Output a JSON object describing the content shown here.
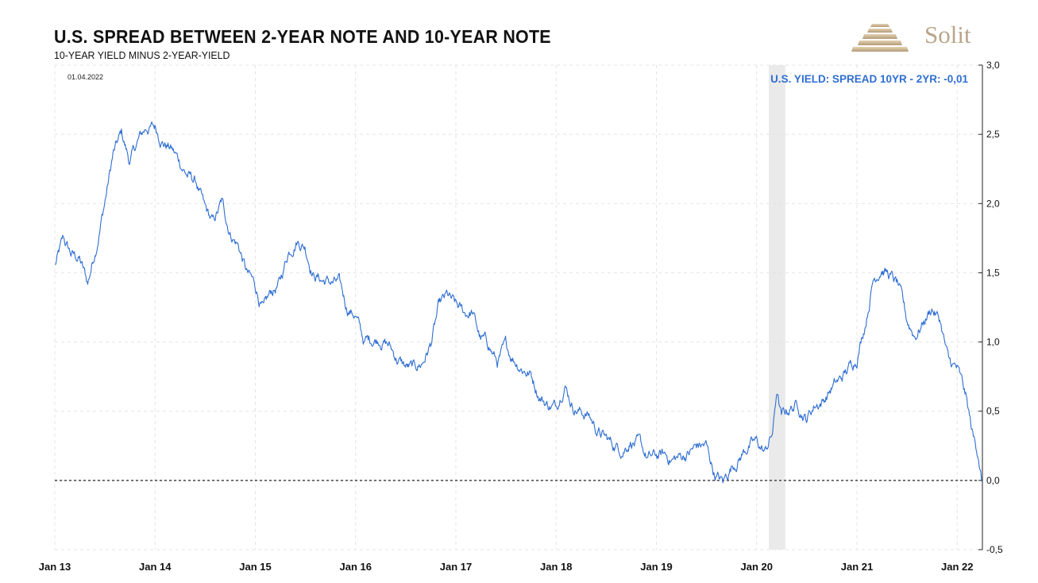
{
  "header": {
    "title": "U.S. SPREAD BETWEEN 2-YEAR NOTE AND 10-YEAR NOTE",
    "subtitle": "10-YEAR YIELD MINUS 2-YEAR-YIELD",
    "date": "01.04.2022"
  },
  "brand": {
    "name": "Solit",
    "color": "#b8a58a"
  },
  "chart_data": {
    "type": "line",
    "title": "U.S. SPREAD BETWEEN 2-YEAR NOTE AND 10-YEAR NOTE",
    "subtitle": "10-YEAR YIELD MINUS 2-YEAR-YIELD",
    "annotation": "U.S. YIELD: SPREAD 10YR - 2YR: -0,01",
    "x_ticks": [
      "Jan 13",
      "Jan 14",
      "Jan 15",
      "Jan 16",
      "Jan 17",
      "Jan 18",
      "Jan 19",
      "Jan 20",
      "Jan 21",
      "Jan 22"
    ],
    "y_ticks": [
      "3,0",
      "2,5",
      "2,0",
      "1,5",
      "1,0",
      "0,5",
      "0,0",
      "-0,5"
    ],
    "ylim": [
      -0.5,
      3.0
    ],
    "xlim": [
      "2013-01-01",
      "2022-04-01"
    ],
    "grid": true,
    "y_axis_side": "right",
    "reference_line": 0.0,
    "shaded_period": [
      "2020-02-15",
      "2020-04-15"
    ],
    "colors": {
      "line": "#2f6ed1",
      "annotation": "#2f6ed1",
      "shade": "#e6e6e6"
    },
    "series": [
      {
        "name": "U.S. YIELD: SPREAD 10YR - 2YR",
        "points": [
          [
            "2013-01-02",
            1.55
          ],
          [
            "2013-02-01",
            1.73
          ],
          [
            "2013-03-01",
            1.63
          ],
          [
            "2013-04-01",
            1.6
          ],
          [
            "2013-05-01",
            1.42
          ],
          [
            "2013-06-01",
            1.7
          ],
          [
            "2013-07-01",
            2.0
          ],
          [
            "2013-08-01",
            2.35
          ],
          [
            "2013-09-01",
            2.5
          ],
          [
            "2013-10-01",
            2.3
          ],
          [
            "2013-11-01",
            2.45
          ],
          [
            "2013-12-01",
            2.55
          ],
          [
            "2014-01-01",
            2.55
          ],
          [
            "2014-02-01",
            2.45
          ],
          [
            "2014-03-01",
            2.4
          ],
          [
            "2014-04-01",
            2.3
          ],
          [
            "2014-05-01",
            2.2
          ],
          [
            "2014-06-01",
            2.15
          ],
          [
            "2014-07-01",
            1.95
          ],
          [
            "2014-08-01",
            1.85
          ],
          [
            "2014-09-01",
            2.0
          ],
          [
            "2014-10-01",
            1.8
          ],
          [
            "2014-11-01",
            1.7
          ],
          [
            "2014-12-01",
            1.5
          ],
          [
            "2015-01-01",
            1.4
          ],
          [
            "2015-02-01",
            1.22
          ],
          [
            "2015-03-01",
            1.35
          ],
          [
            "2015-04-01",
            1.42
          ],
          [
            "2015-05-01",
            1.65
          ],
          [
            "2015-06-01",
            1.75
          ],
          [
            "2015-07-01",
            1.7
          ],
          [
            "2015-08-01",
            1.5
          ],
          [
            "2015-09-01",
            1.45
          ],
          [
            "2015-10-01",
            1.43
          ],
          [
            "2015-11-01",
            1.42
          ],
          [
            "2015-12-01",
            1.25
          ],
          [
            "2016-01-01",
            1.2
          ],
          [
            "2016-02-01",
            1.0
          ],
          [
            "2016-03-01",
            1.02
          ],
          [
            "2016-04-01",
            1.03
          ],
          [
            "2016-05-01",
            0.98
          ],
          [
            "2016-06-01",
            0.88
          ],
          [
            "2016-07-01",
            0.82
          ],
          [
            "2016-08-01",
            0.8
          ],
          [
            "2016-09-01",
            0.85
          ],
          [
            "2016-10-01",
            0.98
          ],
          [
            "2016-11-01",
            1.25
          ],
          [
            "2016-12-01",
            1.32
          ],
          [
            "2017-01-01",
            1.25
          ],
          [
            "2017-02-01",
            1.2
          ],
          [
            "2017-03-01",
            1.22
          ],
          [
            "2017-04-01",
            1.02
          ],
          [
            "2017-05-01",
            0.98
          ],
          [
            "2017-06-01",
            0.85
          ],
          [
            "2017-07-01",
            0.95
          ],
          [
            "2017-08-01",
            0.88
          ],
          [
            "2017-09-01",
            0.82
          ],
          [
            "2017-10-01",
            0.77
          ],
          [
            "2017-11-01",
            0.62
          ],
          [
            "2017-12-01",
            0.55
          ],
          [
            "2018-01-01",
            0.53
          ],
          [
            "2018-02-01",
            0.72
          ],
          [
            "2018-03-01",
            0.55
          ],
          [
            "2018-04-01",
            0.5
          ],
          [
            "2018-05-01",
            0.47
          ],
          [
            "2018-06-01",
            0.36
          ],
          [
            "2018-07-01",
            0.3
          ],
          [
            "2018-08-01",
            0.25
          ],
          [
            "2018-09-01",
            0.23
          ],
          [
            "2018-10-01",
            0.3
          ],
          [
            "2018-11-01",
            0.25
          ],
          [
            "2018-12-01",
            0.15
          ],
          [
            "2019-01-01",
            0.17
          ],
          [
            "2019-02-01",
            0.18
          ],
          [
            "2019-03-01",
            0.15
          ],
          [
            "2019-04-01",
            0.17
          ],
          [
            "2019-05-01",
            0.2
          ],
          [
            "2019-06-01",
            0.25
          ],
          [
            "2019-07-01",
            0.25
          ],
          [
            "2019-08-01",
            0.05
          ],
          [
            "2019-09-01",
            -0.02
          ],
          [
            "2019-10-01",
            0.1
          ],
          [
            "2019-11-01",
            0.17
          ],
          [
            "2019-12-01",
            0.25
          ],
          [
            "2020-01-01",
            0.27
          ],
          [
            "2020-02-01",
            0.2
          ],
          [
            "2020-03-01",
            0.35
          ],
          [
            "2020-03-15",
            0.65
          ],
          [
            "2020-04-01",
            0.45
          ],
          [
            "2020-05-01",
            0.52
          ],
          [
            "2020-06-01",
            0.55
          ],
          [
            "2020-07-01",
            0.45
          ],
          [
            "2020-08-01",
            0.55
          ],
          [
            "2020-09-01",
            0.58
          ],
          [
            "2020-10-01",
            0.67
          ],
          [
            "2020-11-01",
            0.72
          ],
          [
            "2020-12-01",
            0.8
          ],
          [
            "2021-01-01",
            0.9
          ],
          [
            "2021-02-01",
            1.15
          ],
          [
            "2021-03-01",
            1.45
          ],
          [
            "2021-04-01",
            1.55
          ],
          [
            "2021-05-01",
            1.48
          ],
          [
            "2021-06-01",
            1.4
          ],
          [
            "2021-07-01",
            1.15
          ],
          [
            "2021-08-01",
            1.05
          ],
          [
            "2021-09-01",
            1.15
          ],
          [
            "2021-10-01",
            1.25
          ],
          [
            "2021-11-01",
            1.15
          ],
          [
            "2021-12-01",
            0.85
          ],
          [
            "2022-01-01",
            0.8
          ],
          [
            "2022-02-01",
            0.6
          ],
          [
            "2022-03-01",
            0.3
          ],
          [
            "2022-03-20",
            0.2
          ],
          [
            "2022-04-01",
            -0.01
          ]
        ]
      }
    ]
  }
}
